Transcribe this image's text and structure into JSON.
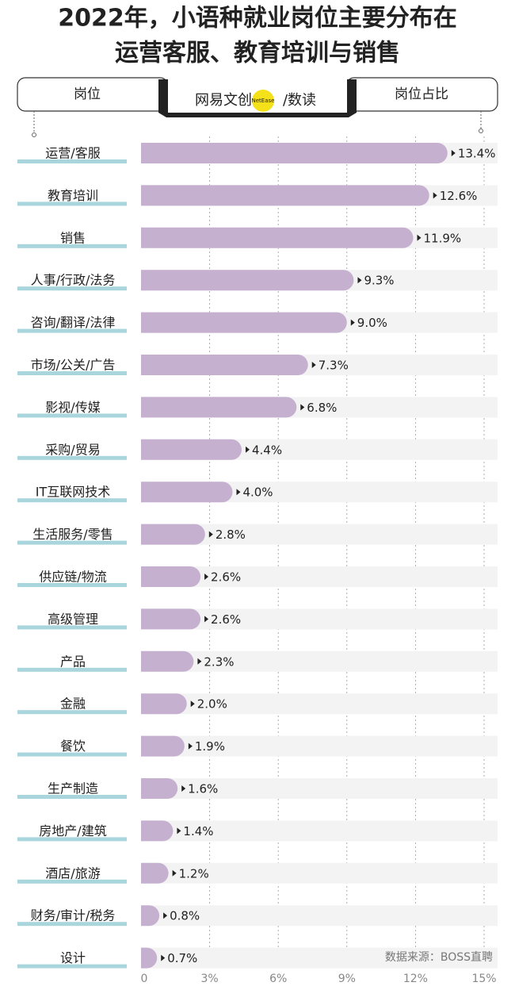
{
  "chart_data": {
    "type": "bar",
    "title": [
      "2022年，小语种就业岗位主要分布在",
      "运营客服、教育培训与销售"
    ],
    "header_left": "岗位",
    "header_right": "岗位占比",
    "logo_left": "网易文创",
    "logo_mid": "NetEase",
    "logo_right": "/数读",
    "source": "数据来源：BOSS直聘",
    "categories": [
      "运营/客服",
      "教育培训",
      "销售",
      "人事/行政/法务",
      "咨询/翻译/法律",
      "市场/公关/广告",
      "影视/传媒",
      "采购/贸易",
      "IT互联网技术",
      "生活服务/零售",
      "供应链/物流",
      "高级管理",
      "产品",
      "金融",
      "餐饮",
      "生产制造",
      "房地产/建筑",
      "酒店/旅游",
      "财务/审计/税务",
      "设计"
    ],
    "values": [
      13.4,
      12.6,
      11.9,
      9.3,
      9.0,
      7.3,
      6.8,
      4.4,
      4.0,
      2.8,
      2.6,
      2.6,
      2.3,
      2.0,
      1.9,
      1.6,
      1.4,
      1.2,
      0.8,
      0.7
    ],
    "value_labels": [
      "13.4%",
      "12.6%",
      "11.9%",
      "9.3%",
      "9.0%",
      "7.3%",
      "6.8%",
      "4.4%",
      "4.0%",
      "2.8%",
      "2.6%",
      "2.6%",
      "2.3%",
      "2.0%",
      "1.9%",
      "1.6%",
      "1.4%",
      "1.2%",
      "0.8%",
      "0.7%"
    ],
    "color": "#c6b0d0",
    "track_color": "#f3f3f3",
    "label_underline_color": "#a9d5dd",
    "xlim": [
      0,
      15
    ],
    "xticks": [
      0,
      {
        "value": 3,
        "label": "3%"
      },
      {
        "value": 6,
        "label": "6%"
      },
      {
        "value": 9,
        "label": "9%"
      },
      {
        "value": 12,
        "label": "12%"
      },
      {
        "value": 15,
        "label": "15%"
      }
    ],
    "grid": true
  }
}
